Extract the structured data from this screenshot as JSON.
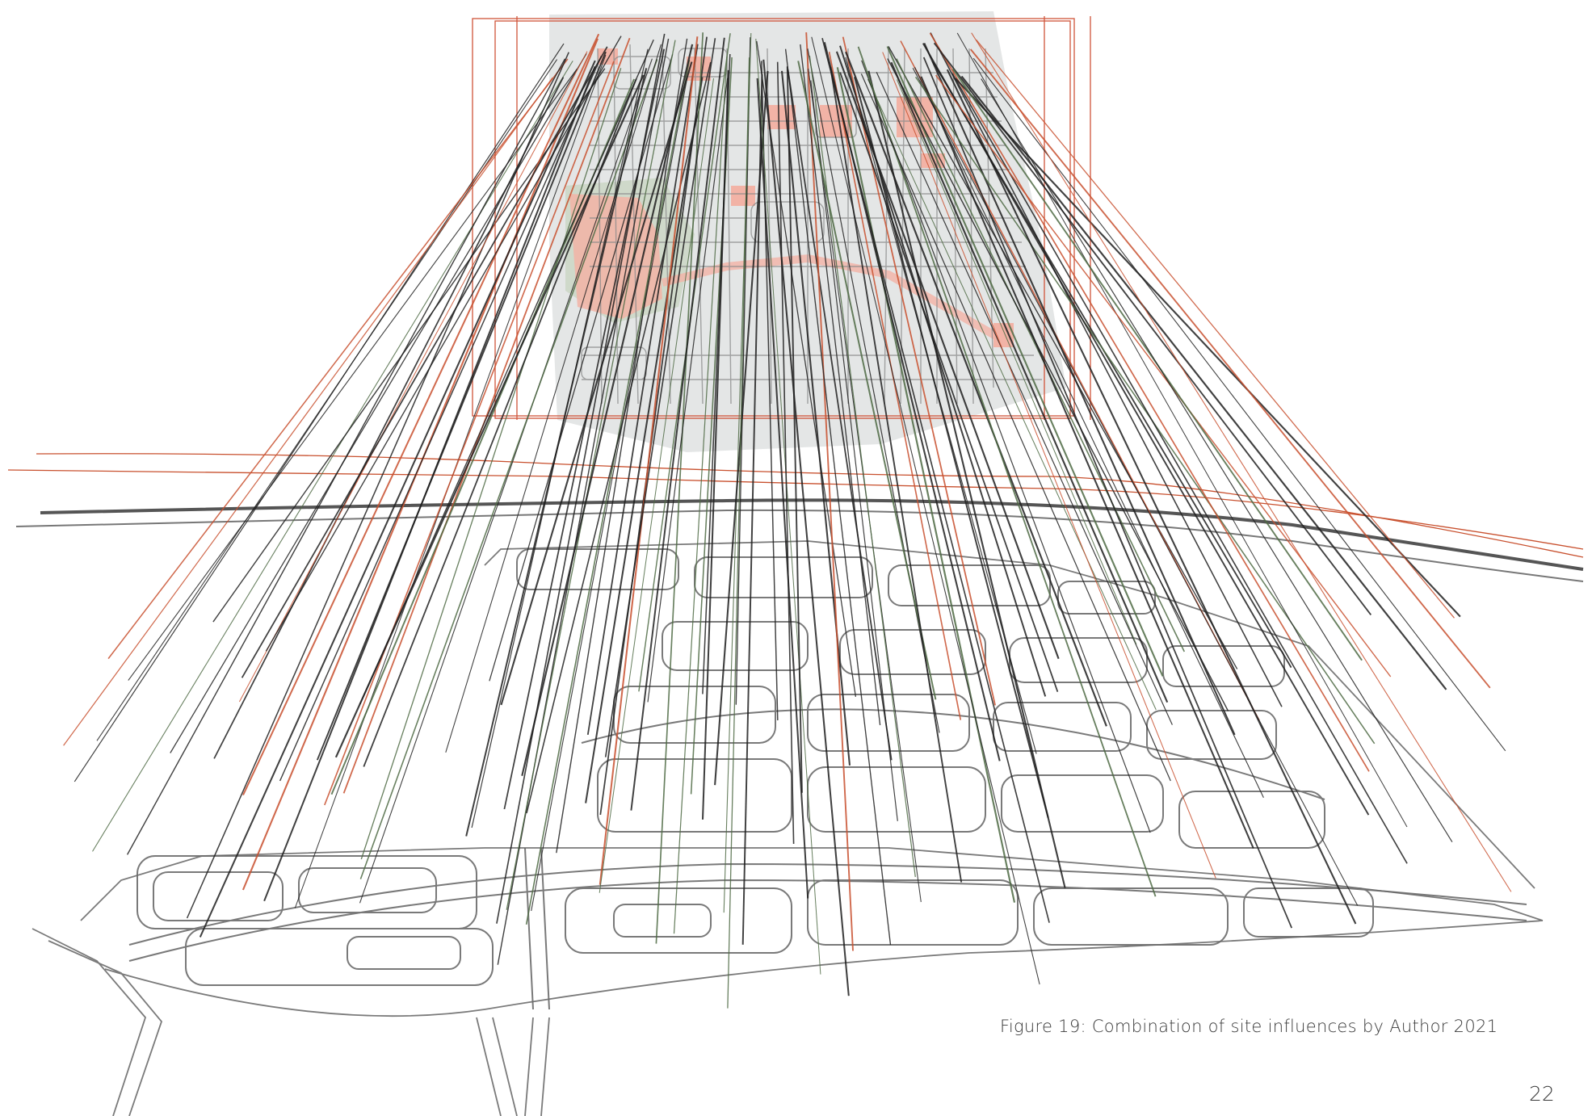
{
  "figure": {
    "caption": "Figure 19: Combination of site influences by Author 2021",
    "illustration": "site-influences-perspective-drawing"
  },
  "page": {
    "number": "22"
  },
  "colors": {
    "background": "#ffffff",
    "road_linework": "#6b6b6b",
    "influence_black": "#1f1f1f",
    "influence_green": "#4e6a44",
    "influence_red": "#c8502e",
    "zone_pink": "#f2b3a6",
    "zone_grey": "#d9dcdc",
    "zone_green": "#c9d6c3",
    "frame_red": "#d0543a"
  }
}
